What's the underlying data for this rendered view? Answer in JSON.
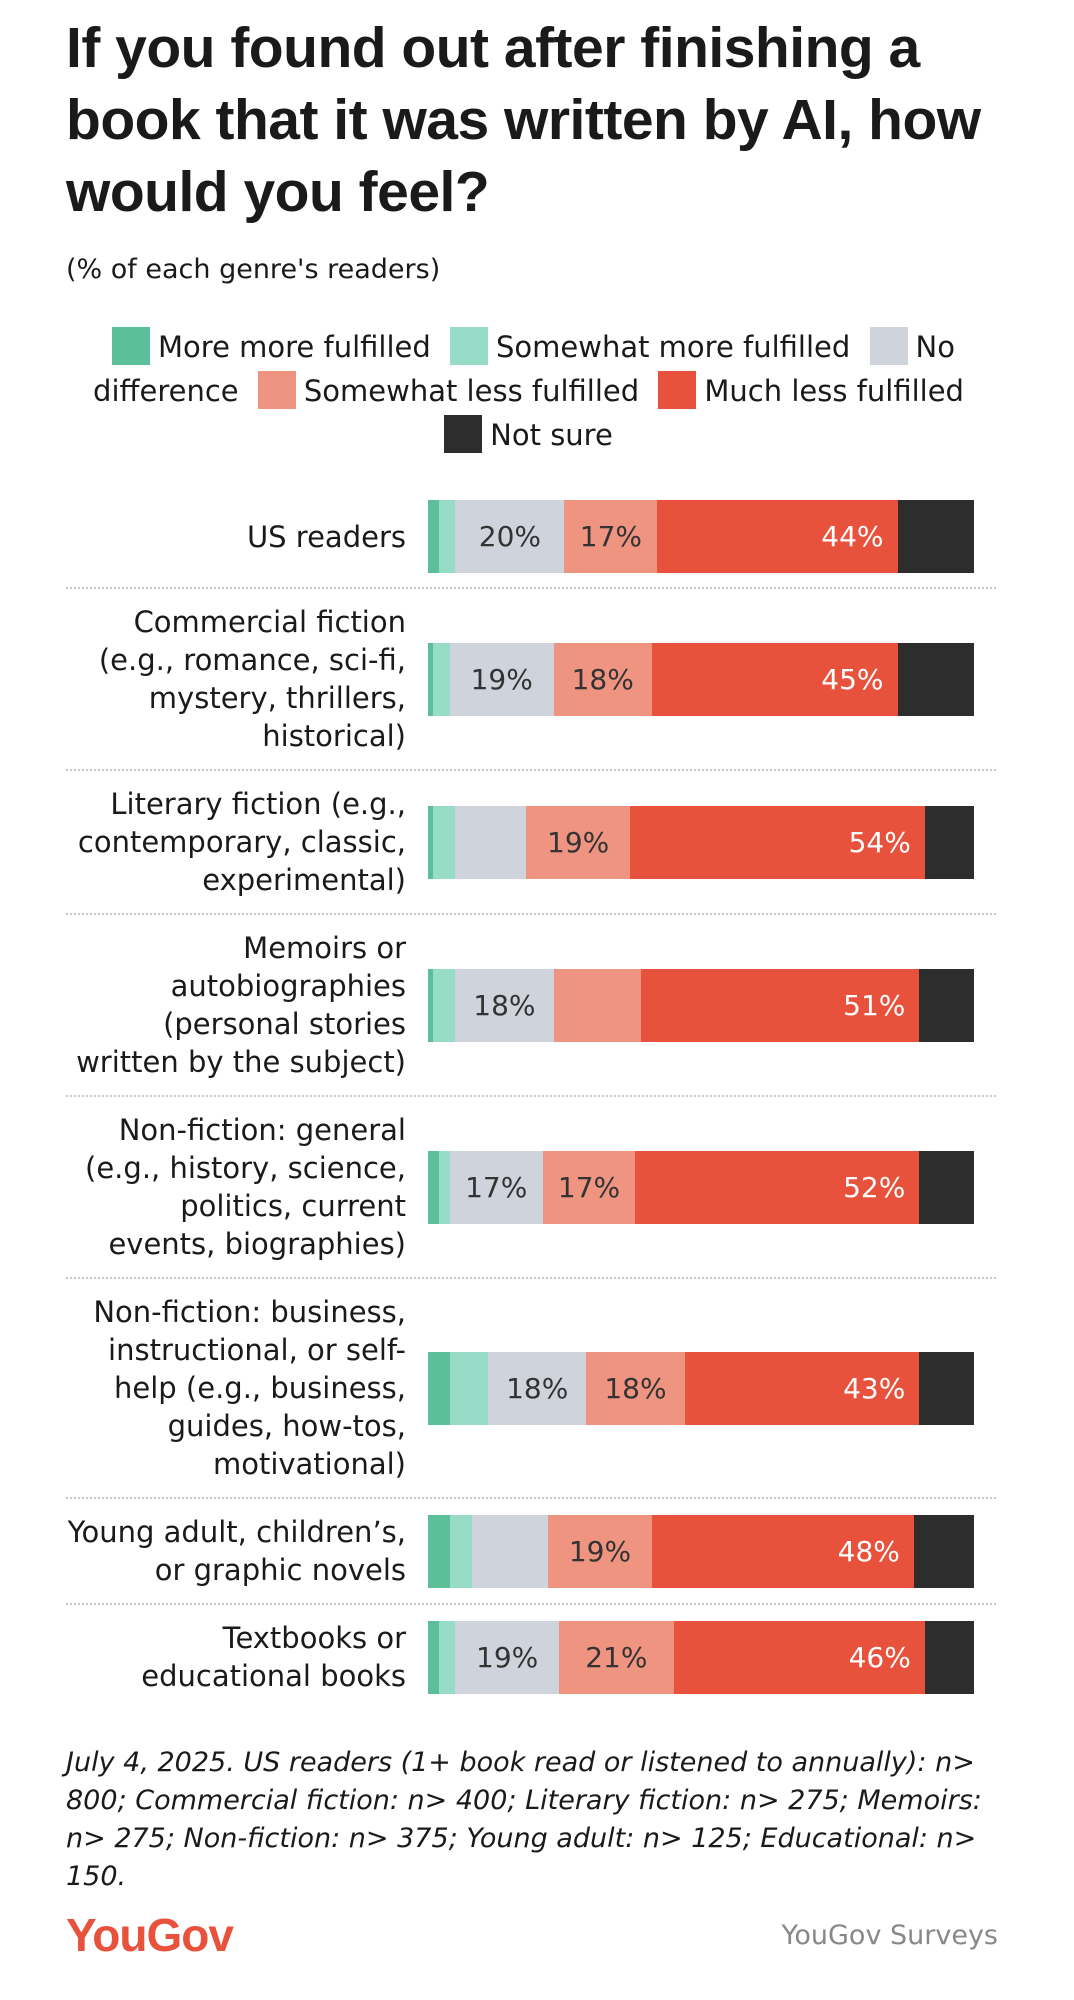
{
  "chart_data": {
    "type": "stacked-bar-horizontal",
    "title": "If you found out after finishing a book that it was written by AI, how would you feel?",
    "subtitle": "(% of each genre's readers)",
    "categories": [
      "US readers",
      "Commercial fiction (e.g., romance, sci-fi, mystery, thrillers, historical)",
      "Literary fiction (e.g., contemporary, classic, experimental)",
      "Memoirs or autobiographies (personal stories written by the subject)",
      "Non-fiction: general (e.g., history, science, politics, current events, biographies)",
      "Non-fiction: business, instructional, or self-help (e.g., business, guides, how-tos, motivational)",
      "Young adult, children’s, or graphic novels",
      "Textbooks or educational books"
    ],
    "xlim": [
      0,
      100
    ],
    "series": [
      {
        "name": "More more fulfilled",
        "color": "#5bbf9a",
        "values": [
          2,
          1,
          1,
          1,
          2,
          4,
          4,
          2
        ]
      },
      {
        "name": "Somewhat more fulfilled",
        "color": "#97dcc6",
        "values": [
          3,
          3,
          4,
          4,
          2,
          7,
          4,
          3
        ]
      },
      {
        "name": "No difference",
        "color": "#cfd3dc",
        "values": [
          20,
          19,
          13,
          18,
          17,
          18,
          14,
          19
        ],
        "value_labels": [
          "20%",
          "19%",
          null,
          "18%",
          "17%",
          "18%",
          null,
          "19%"
        ]
      },
      {
        "name": "Somewhat less fulfilled",
        "color": "#ee9481",
        "values": [
          17,
          18,
          19,
          16,
          17,
          18,
          19,
          21
        ],
        "value_labels": [
          "17%",
          "18%",
          "19%",
          null,
          "17%",
          "18%",
          "19%",
          "21%"
        ]
      },
      {
        "name": "Much less fulfilled",
        "color": "#e8523c",
        "values": [
          44,
          45,
          54,
          51,
          52,
          43,
          48,
          46
        ],
        "value_labels": [
          "44%",
          "45%",
          "54%",
          "51%",
          "52%",
          "43%",
          "48%",
          "46%"
        ]
      },
      {
        "name": "Not sure",
        "color": "#2d2d2d",
        "values": [
          14,
          14,
          9,
          10,
          10,
          10,
          11,
          9
        ]
      }
    ],
    "footnote": "July 4, 2025. US readers (1+ book read or listened to annually): n> 800; Commercial fiction: n> 400; Literary fiction: n> 275; Memoirs: n> 275; Non-fiction: n> 375; Young adult: n> 125; Educational: n> 150.",
    "brand": "YouGov",
    "source": "YouGov Surveys"
  }
}
